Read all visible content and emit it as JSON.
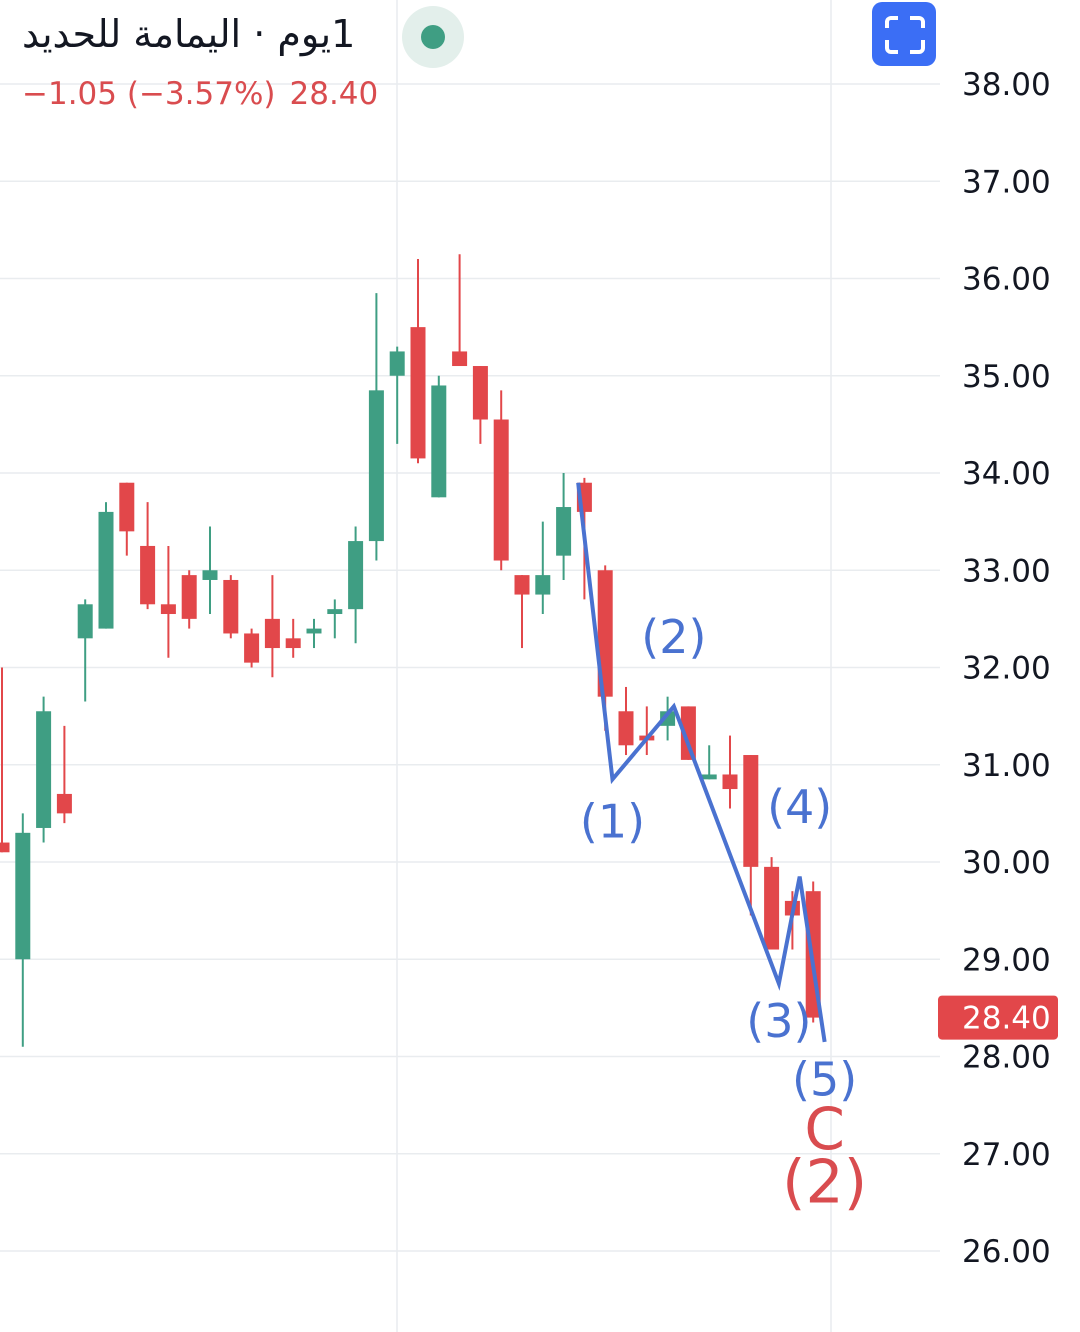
{
  "header": {
    "title": "1يوم · اليمامة للحديد",
    "change": "−1.05 (−3.57%)",
    "price": "28.40"
  },
  "icons": {
    "status": "market-status-dot-icon",
    "fullscreen": "fullscreen-icon"
  },
  "colors": {
    "up": "#3f9e83",
    "down": "#e2474a",
    "wave": "#4a72d0",
    "wave_label": "#4a72d0",
    "major_label": "#d94c4f",
    "grid": "#e9ecef",
    "price_tag": "#e2474a"
  },
  "chart_data": {
    "type": "candlestick",
    "y_axis": {
      "position": "right",
      "min": 26,
      "max": 38,
      "ticks": [
        "38.00",
        "37.00",
        "36.00",
        "35.00",
        "34.00",
        "33.00",
        "32.00",
        "31.00",
        "30.00",
        "29.00",
        "28.00",
        "27.00",
        "26.00"
      ]
    },
    "grid": true,
    "last_price": {
      "value": 28.4,
      "label": "28.40"
    },
    "candles": [
      {
        "o": 30.2,
        "h": 32.0,
        "l": 30.1,
        "c": 30.1
      },
      {
        "o": 29.0,
        "h": 30.5,
        "l": 28.1,
        "c": 30.3
      },
      {
        "o": 30.35,
        "h": 31.7,
        "l": 30.2,
        "c": 31.55
      },
      {
        "o": 30.7,
        "h": 31.4,
        "l": 30.4,
        "c": 30.5
      },
      {
        "o": 32.3,
        "h": 32.7,
        "l": 31.65,
        "c": 32.65
      },
      {
        "o": 32.4,
        "h": 33.7,
        "l": 32.4,
        "c": 33.6
      },
      {
        "o": 33.9,
        "h": 33.9,
        "l": 33.15,
        "c": 33.4
      },
      {
        "o": 33.25,
        "h": 33.7,
        "l": 32.6,
        "c": 32.65
      },
      {
        "o": 32.65,
        "h": 33.25,
        "l": 32.1,
        "c": 32.55
      },
      {
        "o": 32.95,
        "h": 33.0,
        "l": 32.4,
        "c": 32.5
      },
      {
        "o": 32.9,
        "h": 33.45,
        "l": 32.55,
        "c": 33.0
      },
      {
        "o": 32.9,
        "h": 32.95,
        "l": 32.3,
        "c": 32.35
      },
      {
        "o": 32.35,
        "h": 32.4,
        "l": 32.0,
        "c": 32.05
      },
      {
        "o": 32.5,
        "h": 32.95,
        "l": 31.9,
        "c": 32.2
      },
      {
        "o": 32.3,
        "h": 32.5,
        "l": 32.1,
        "c": 32.2
      },
      {
        "o": 32.35,
        "h": 32.5,
        "l": 32.2,
        "c": 32.4
      },
      {
        "o": 32.55,
        "h": 32.7,
        "l": 32.3,
        "c": 32.6
      },
      {
        "o": 32.6,
        "h": 33.45,
        "l": 32.25,
        "c": 33.3
      },
      {
        "o": 33.3,
        "h": 35.85,
        "l": 33.1,
        "c": 34.85
      },
      {
        "o": 35.0,
        "h": 35.3,
        "l": 34.3,
        "c": 35.25
      },
      {
        "o": 35.5,
        "h": 36.2,
        "l": 34.1,
        "c": 34.15
      },
      {
        "o": 33.75,
        "h": 35.0,
        "l": 33.75,
        "c": 34.9
      },
      {
        "o": 35.25,
        "h": 36.25,
        "l": 35.1,
        "c": 35.1
      },
      {
        "o": 35.1,
        "h": 35.1,
        "l": 34.3,
        "c": 34.55
      },
      {
        "o": 34.55,
        "h": 34.85,
        "l": 33.0,
        "c": 33.1
      },
      {
        "o": 32.95,
        "h": 32.95,
        "l": 32.2,
        "c": 32.75
      },
      {
        "o": 32.75,
        "h": 33.5,
        "l": 32.55,
        "c": 32.95
      },
      {
        "o": 33.15,
        "h": 34.0,
        "l": 32.9,
        "c": 33.65
      },
      {
        "o": 33.9,
        "h": 33.95,
        "l": 32.7,
        "c": 33.6
      },
      {
        "o": 33.0,
        "h": 33.05,
        "l": 31.35,
        "c": 31.7
      },
      {
        "o": 31.55,
        "h": 31.8,
        "l": 31.1,
        "c": 31.2
      },
      {
        "o": 31.3,
        "h": 31.6,
        "l": 31.1,
        "c": 31.25
      },
      {
        "o": 31.4,
        "h": 31.7,
        "l": 31.25,
        "c": 31.55
      },
      {
        "o": 31.6,
        "h": 31.6,
        "l": 31.05,
        "c": 31.05
      },
      {
        "o": 30.85,
        "h": 31.2,
        "l": 30.85,
        "c": 30.9
      },
      {
        "o": 30.9,
        "h": 31.3,
        "l": 30.55,
        "c": 30.75
      },
      {
        "o": 31.1,
        "h": 31.1,
        "l": 29.45,
        "c": 29.95
      },
      {
        "o": 29.95,
        "h": 30.05,
        "l": 29.1,
        "c": 29.1
      },
      {
        "o": 29.6,
        "h": 29.7,
        "l": 29.1,
        "c": 29.45
      },
      {
        "o": 29.7,
        "h": 29.8,
        "l": 28.35,
        "c": 28.4
      }
    ],
    "wave": {
      "points": [
        {
          "candle": 27.7,
          "price": 33.9
        },
        {
          "candle": 29.35,
          "price": 30.85
        },
        {
          "candle": 32.3,
          "price": 31.6
        },
        {
          "candle": 37.35,
          "price": 28.75
        },
        {
          "candle": 38.35,
          "price": 29.85
        },
        {
          "candle": 39.55,
          "price": 28.15
        }
      ],
      "labels": [
        {
          "text": "(1)",
          "candle": 29.35,
          "price": 30.25
        },
        {
          "text": "(2)",
          "candle": 32.3,
          "price": 32.15
        },
        {
          "text": "(3)",
          "candle": 37.35,
          "price": 28.2
        },
        {
          "text": "(4)",
          "candle": 38.35,
          "price": 30.4
        },
        {
          "text": "(5)",
          "candle": 39.55,
          "price": 27.6
        }
      ],
      "major_labels": [
        {
          "text": "C",
          "candle": 39.55,
          "price": 27.05
        },
        {
          "text": "(2)",
          "candle": 39.55,
          "price": 26.5
        }
      ]
    }
  }
}
